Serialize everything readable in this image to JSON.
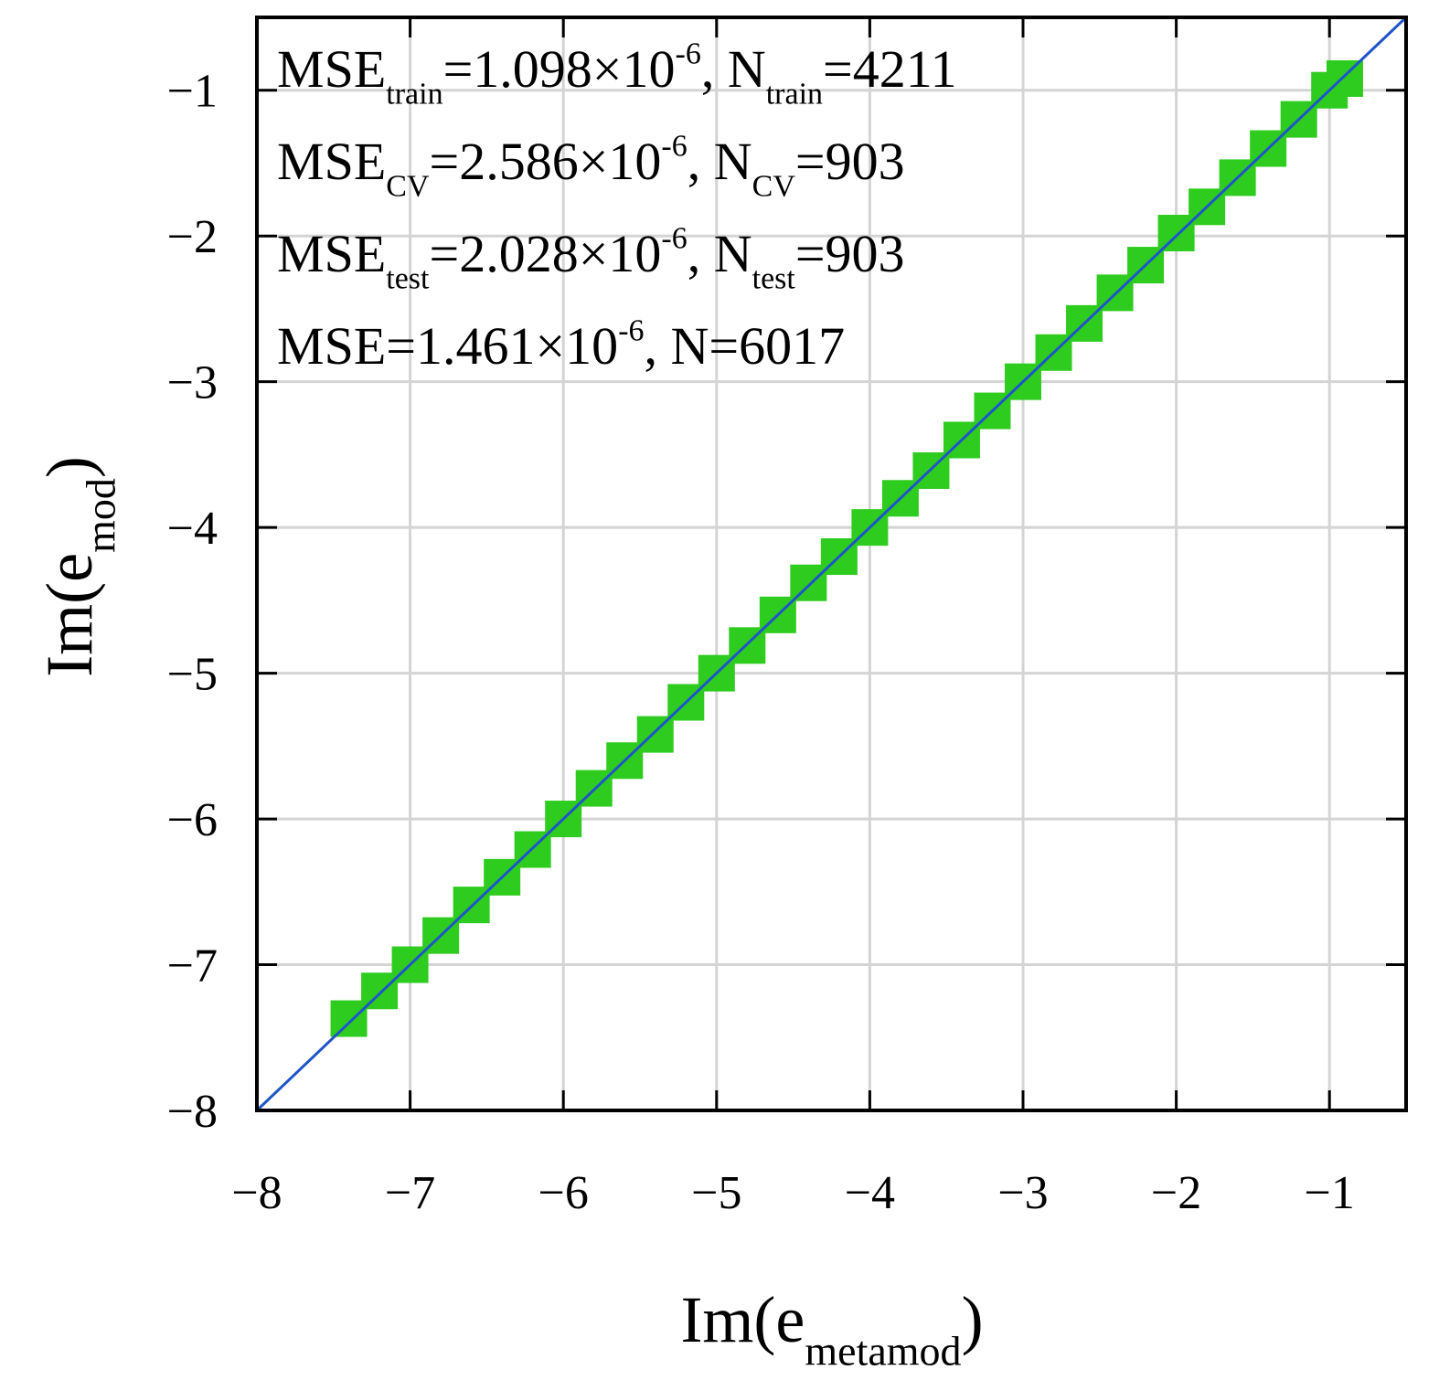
{
  "chart_data": {
    "type": "scatter",
    "xlim": [
      -8,
      -0.5
    ],
    "ylim": [
      -8,
      -0.5
    ],
    "xticks": [
      {
        "value": -8,
        "label": "−8"
      },
      {
        "value": -7,
        "label": "−7"
      },
      {
        "value": -6,
        "label": "−6"
      },
      {
        "value": -5,
        "label": "−5"
      },
      {
        "value": -4,
        "label": "−4"
      },
      {
        "value": -3,
        "label": "−3"
      },
      {
        "value": -2,
        "label": "−2"
      },
      {
        "value": -1,
        "label": "−1"
      }
    ],
    "yticks": [
      {
        "value": -8,
        "label": "−8"
      },
      {
        "value": -7,
        "label": "−7"
      },
      {
        "value": -6,
        "label": "−6"
      },
      {
        "value": -5,
        "label": "−5"
      },
      {
        "value": -4,
        "label": "−4"
      },
      {
        "value": -3,
        "label": "−3"
      },
      {
        "value": -2,
        "label": "−2"
      },
      {
        "value": -1,
        "label": "−1"
      }
    ],
    "grid": true,
    "xlabel": [
      {
        "text": "Im(e"
      },
      {
        "text": "metamod",
        "shift": "sub"
      },
      {
        "text": ")"
      }
    ],
    "ylabel": [
      {
        "text": "Im(e"
      },
      {
        "text": "mod",
        "shift": "sub"
      },
      {
        "text": ")"
      }
    ],
    "annotations": [
      [
        {
          "text": "MSE"
        },
        {
          "text": "train",
          "shift": "sub"
        },
        {
          "text": "=1.098×10"
        },
        {
          "text": "-6",
          "shift": "sup"
        },
        {
          "text": ", N"
        },
        {
          "text": "train",
          "shift": "sub"
        },
        {
          "text": "=4211"
        }
      ],
      [
        {
          "text": "MSE"
        },
        {
          "text": "CV",
          "shift": "sub"
        },
        {
          "text": "=2.586×10"
        },
        {
          "text": "-6",
          "shift": "sup"
        },
        {
          "text": ", N"
        },
        {
          "text": "CV",
          "shift": "sub"
        },
        {
          "text": "=903"
        }
      ],
      [
        {
          "text": "MSE"
        },
        {
          "text": "test",
          "shift": "sub"
        },
        {
          "text": "=2.028×10"
        },
        {
          "text": "-6",
          "shift": "sup"
        },
        {
          "text": ", N"
        },
        {
          "text": "test",
          "shift": "sub"
        },
        {
          "text": "=903"
        }
      ],
      [
        {
          "text": "MSE=1.461×10"
        },
        {
          "text": "-6",
          "shift": "sup"
        },
        {
          "text": ", N=6017"
        }
      ]
    ],
    "series": [
      {
        "type": "scatter",
        "color": "#2ecc1f",
        "marker": "square",
        "x": [
          -7.4,
          -7.2,
          -7.0,
          -6.8,
          -6.6,
          -6.4,
          -6.2,
          -6.0,
          -5.8,
          -5.6,
          -5.4,
          -5.2,
          -5.0,
          -4.8,
          -4.6,
          -4.4,
          -4.2,
          -4.0,
          -3.8,
          -3.6,
          -3.4,
          -3.2,
          -3.0,
          -2.8,
          -2.6,
          -2.4,
          -2.2,
          -2.0,
          -1.8,
          -1.6,
          -1.4,
          -1.2,
          -1.0,
          -0.9
        ],
        "values": [
          -7.37,
          -7.18,
          -7.0,
          -6.8,
          -6.59,
          -6.4,
          -6.21,
          -6.0,
          -5.79,
          -5.6,
          -5.42,
          -5.2,
          -5.0,
          -4.81,
          -4.6,
          -4.38,
          -4.2,
          -4.0,
          -3.8,
          -3.61,
          -3.4,
          -3.2,
          -3.0,
          -2.8,
          -2.6,
          -2.39,
          -2.2,
          -1.98,
          -1.8,
          -1.6,
          -1.4,
          -1.2,
          -1.0,
          -0.92
        ]
      },
      {
        "type": "line",
        "color": "#1f55c8",
        "x": [
          -8,
          -0.5
        ],
        "values": [
          -8,
          -0.5
        ]
      }
    ]
  }
}
